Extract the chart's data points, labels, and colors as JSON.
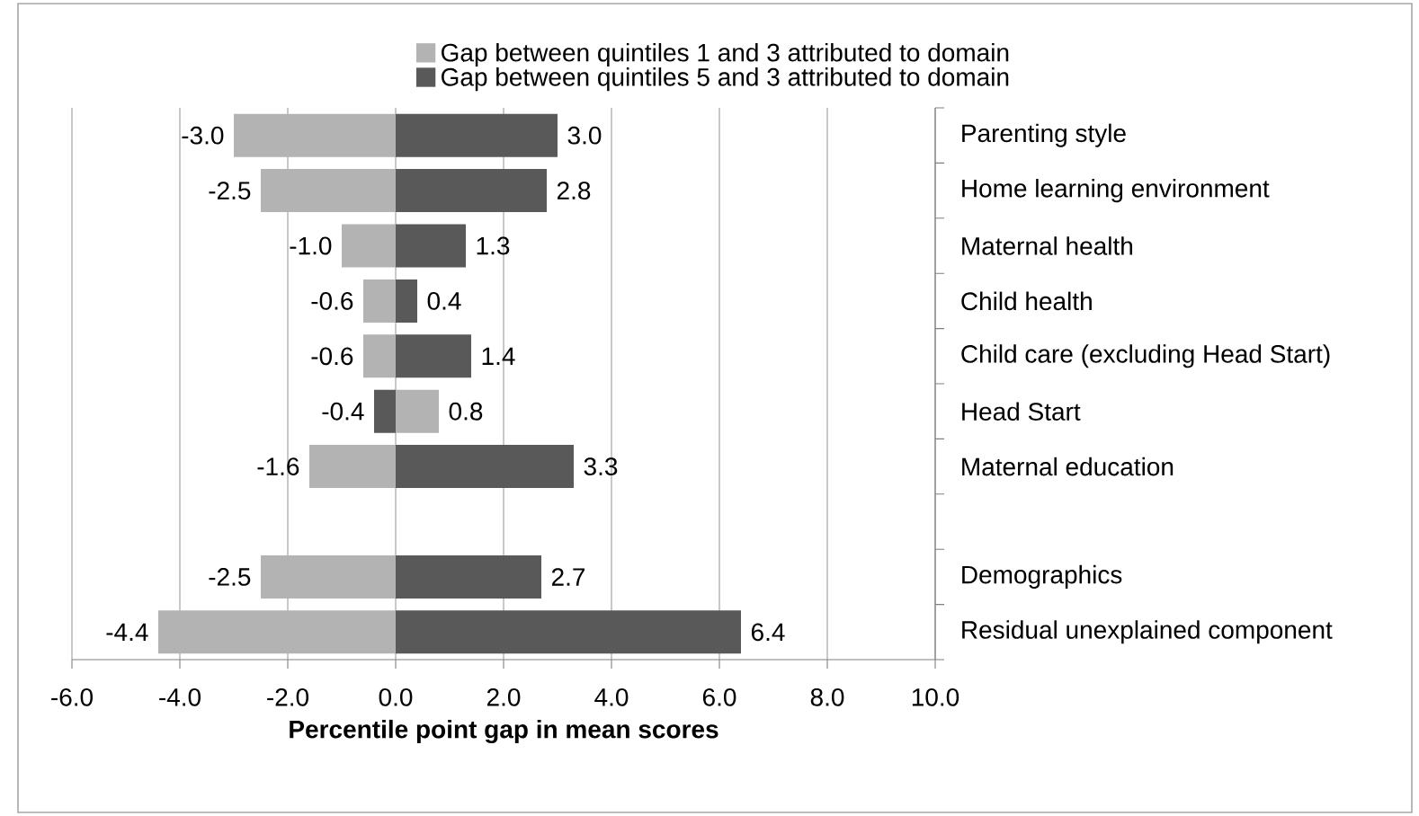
{
  "chart_data": {
    "type": "bar",
    "orientation": "horizontal",
    "categories": [
      "Parenting style",
      "Home learning environment",
      "Maternal health",
      "Child health",
      "Child care (excluding Head Start)",
      "Head Start",
      "Maternal education",
      null,
      "Demographics",
      "Residual unexplained component"
    ],
    "series": [
      {
        "name": "Gap between quintiles 1 and 3 attributed to domain",
        "color": "#b3b3b3",
        "values": [
          -3.0,
          -2.5,
          -1.0,
          -0.6,
          -0.6,
          0.8,
          -1.6,
          null,
          -2.5,
          -4.4
        ],
        "value_labels": [
          "-3.0",
          "-2.5",
          "-1.0",
          "-0.6",
          "-0.6",
          "0.8",
          "-1.6",
          null,
          "-2.5",
          "-4.4"
        ]
      },
      {
        "name": "Gap between quintiles 5 and 3 attributed to domain",
        "color": "#595959",
        "values": [
          3.0,
          2.8,
          1.3,
          0.4,
          1.4,
          -0.4,
          3.3,
          null,
          2.7,
          6.4
        ],
        "value_labels": [
          "3.0",
          "2.8",
          "1.3",
          "0.4",
          "1.4",
          "-0.4",
          "3.3",
          null,
          "2.7",
          "6.4"
        ]
      }
    ],
    "xlabel": "Percentile point gap in mean scores",
    "xlim": [
      -6,
      10
    ],
    "xticks": [
      {
        "value": -6,
        "label": "-6.0"
      },
      {
        "value": -4,
        "label": "-4.0"
      },
      {
        "value": -2,
        "label": "-2.0"
      },
      {
        "value": 0,
        "label": "0.0"
      },
      {
        "value": 2,
        "label": "2.0"
      },
      {
        "value": 4,
        "label": "4.0"
      },
      {
        "value": 6,
        "label": "6.0"
      },
      {
        "value": 8,
        "label": "8.0"
      },
      {
        "value": 10,
        "label": "10.0"
      }
    ],
    "stacked": true,
    "grid": "x",
    "legend": "top"
  }
}
